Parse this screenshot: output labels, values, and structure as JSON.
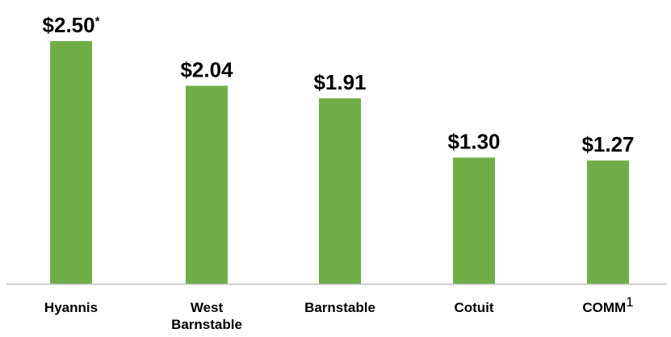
{
  "chart_data": {
    "type": "bar",
    "categories": [
      {
        "name": "Hyannis",
        "lines": [
          "Hyannis"
        ],
        "superscript": ""
      },
      {
        "name": "West Barnstable",
        "lines": [
          "West",
          "Barnstable"
        ],
        "superscript": ""
      },
      {
        "name": "Barnstable",
        "lines": [
          "Barnstable"
        ],
        "superscript": ""
      },
      {
        "name": "Cotuit",
        "lines": [
          "Cotuit"
        ],
        "superscript": ""
      },
      {
        "name": "COMM",
        "lines": [
          "COMM"
        ],
        "superscript": "1"
      }
    ],
    "values": [
      2.5,
      2.04,
      1.91,
      1.3,
      1.27
    ],
    "value_labels": [
      "$2.50",
      "$2.04",
      "$1.91",
      "$1.30",
      "$1.27"
    ],
    "value_label_markers": [
      "*",
      "",
      "",
      "",
      ""
    ],
    "title": "",
    "xlabel": "",
    "ylabel": "",
    "ylim": [
      0,
      2.5
    ],
    "grid": false,
    "legend": "none",
    "colors": {
      "bar": "#70ad47",
      "axis": "#bfbfbf",
      "text": "#000000"
    }
  }
}
